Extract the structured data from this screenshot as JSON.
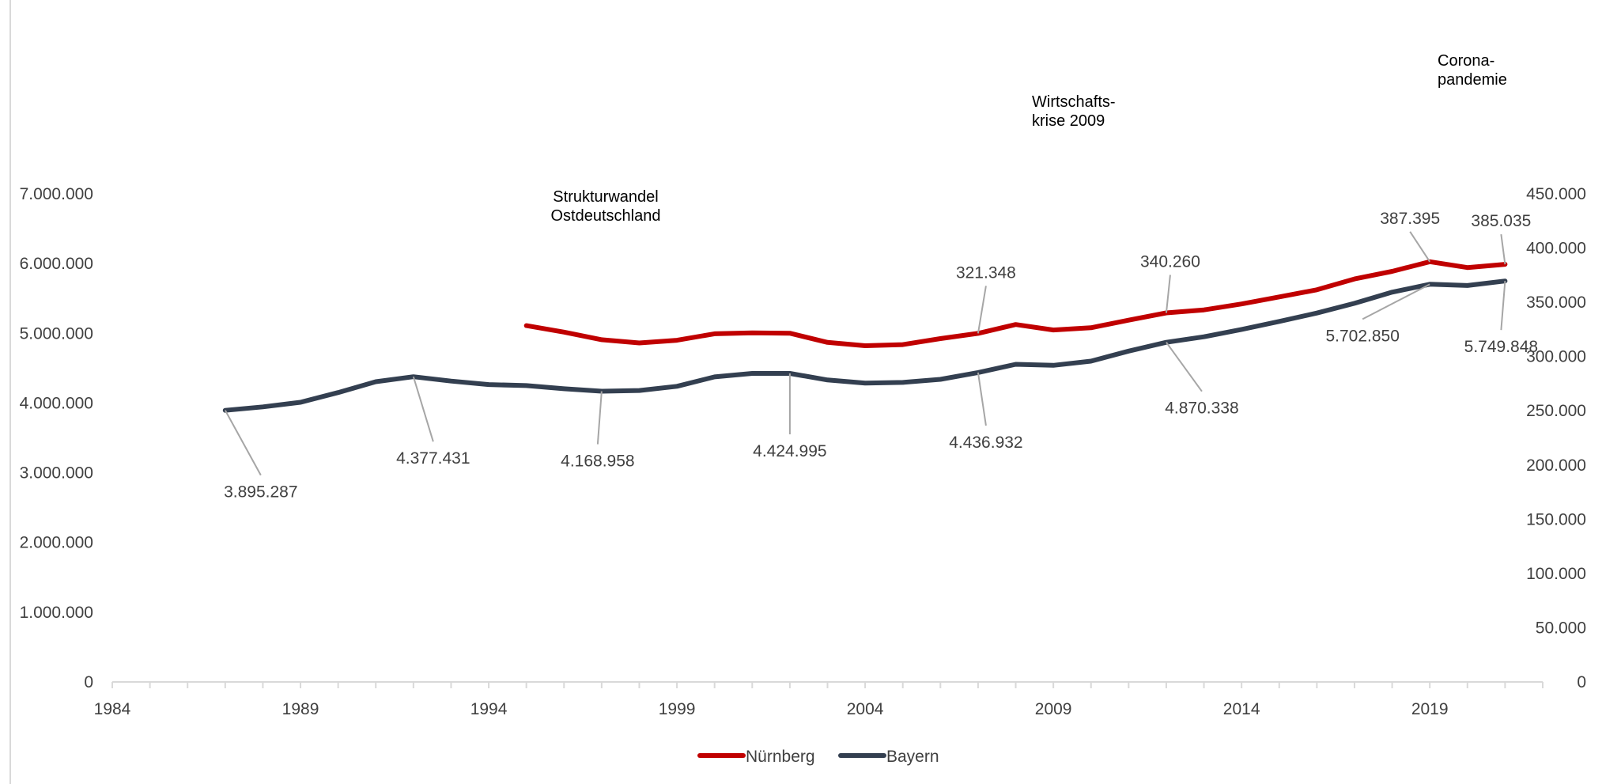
{
  "chart_data": {
    "type": "line",
    "title": "",
    "xlabel": "",
    "ylabel": "",
    "x_ticks": [
      "1984",
      "1989",
      "1994",
      "1999",
      "2004",
      "2009",
      "2014",
      "2019"
    ],
    "xlim": [
      1984,
      2022
    ],
    "y_left": {
      "range": [
        0,
        7000000
      ],
      "ticks": [
        "0",
        "1.000.000",
        "2.000.000",
        "3.000.000",
        "4.000.000",
        "5.000.000",
        "6.000.000",
        "7.000.000"
      ]
    },
    "y_right": {
      "range": [
        0,
        450000
      ],
      "ticks": [
        "0",
        "50.000",
        "100.000",
        "150.000",
        "200.000",
        "250.000",
        "300.000",
        "350.000",
        "400.000",
        "450.000"
      ]
    },
    "legend_position": "bottom",
    "grid": false,
    "series": [
      {
        "name": "Nürnberg",
        "axis": "right",
        "color": "#c00000",
        "x": [
          1995,
          1996,
          1997,
          1998,
          1999,
          2000,
          2001,
          2002,
          2003,
          2004,
          2005,
          2006,
          2007,
          2008,
          2009,
          2010,
          2011,
          2012,
          2013,
          2014,
          2015,
          2016,
          2017,
          2018,
          2019,
          2020,
          2021
        ],
        "values": [
          328500,
          322500,
          315500,
          312500,
          315000,
          321000,
          321800,
          321500,
          313000,
          310000,
          311000,
          316500,
          321348,
          329500,
          324500,
          326500,
          333500,
          340260,
          343000,
          348500,
          355000,
          361500,
          371500,
          378500,
          387395,
          382000,
          385035
        ]
      },
      {
        "name": "Bayern",
        "axis": "left",
        "color": "#333f50",
        "x": [
          1987,
          1988,
          1989,
          1990,
          1991,
          1992,
          1993,
          1994,
          1995,
          1996,
          1997,
          1998,
          1999,
          2000,
          2001,
          2002,
          2003,
          2004,
          2005,
          2006,
          2007,
          2008,
          2009,
          2010,
          2011,
          2012,
          2013,
          2014,
          2015,
          2016,
          2017,
          2018,
          2019,
          2020,
          2021
        ],
        "values": [
          3895287,
          3945000,
          4010000,
          4150000,
          4305000,
          4377431,
          4315000,
          4265000,
          4250000,
          4205000,
          4168958,
          4180000,
          4240000,
          4375000,
          4424995,
          4424995,
          4330000,
          4285000,
          4295000,
          4340000,
          4436932,
          4555000,
          4540000,
          4600000,
          4745000,
          4870338,
          4950000,
          5055000,
          5170000,
          5290000,
          5430000,
          5590000,
          5702850,
          5685000,
          5749848
        ]
      }
    ],
    "data_labels": [
      {
        "series": "Bayern",
        "x": 1987,
        "text": "3.895.287"
      },
      {
        "series": "Bayern",
        "x": 1992,
        "text": "4.377.431"
      },
      {
        "series": "Bayern",
        "x": 1997,
        "text": "4.168.958"
      },
      {
        "series": "Bayern",
        "x": 2002,
        "text": "4.424.995"
      },
      {
        "series": "Bayern",
        "x": 2007,
        "text": "4.436.932"
      },
      {
        "series": "Bayern",
        "x": 2012,
        "text": "4.870.338"
      },
      {
        "series": "Bayern",
        "x": 2019,
        "text": "5.702.850"
      },
      {
        "series": "Bayern",
        "x": 2021,
        "text": "5.749.848"
      },
      {
        "series": "Nürnberg",
        "x": 2007,
        "text": "321.348"
      },
      {
        "series": "Nürnberg",
        "x": 2012,
        "text": "340.260"
      },
      {
        "series": "Nürnberg",
        "x": 2019,
        "text": "387.395"
      },
      {
        "series": "Nürnberg",
        "x": 2021,
        "text": "385.035"
      }
    ],
    "annotations": [
      {
        "lines": [
          "Strukturwandel",
          "Ostdeutschland"
        ]
      },
      {
        "lines": [
          "Wirtschafts-",
          "krise 2009"
        ]
      },
      {
        "lines": [
          "Corona-",
          "pandemie"
        ]
      }
    ]
  }
}
